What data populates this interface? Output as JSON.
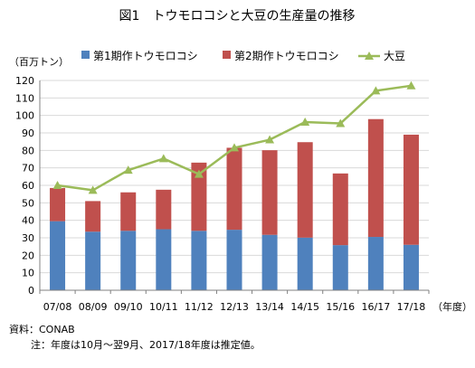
{
  "chart_data": {
    "type": "bar",
    "title": "図1　トウモロコシと大豆の生産量の推移",
    "ylabel": "（百万トン）",
    "xlabel": "（年度）",
    "ylim": [
      0,
      120
    ],
    "ytick_step": 10,
    "grid": true,
    "legend_position": "top",
    "categories": [
      "07/08",
      "08/09",
      "09/10",
      "10/11",
      "11/12",
      "12/13",
      "13/14",
      "14/15",
      "15/16",
      "16/17",
      "17/18"
    ],
    "series": [
      {
        "name": "第1期作トウモロコシ",
        "kind": "bar-stacked",
        "color": "#4f81bd",
        "values": [
          39.5,
          33.5,
          34,
          34.9,
          34,
          34.6,
          31.7,
          30.1,
          25.8,
          30.5,
          26
        ]
      },
      {
        "name": "第2期作トウモロコシ",
        "kind": "bar-stacked",
        "color": "#c0504d",
        "values": [
          19,
          17.5,
          22,
          22.6,
          39,
          46.9,
          48.4,
          54.6,
          41,
          67.4,
          63
        ]
      },
      {
        "name": "大豆",
        "kind": "line",
        "color": "#9bbb59",
        "values": [
          60,
          57.2,
          68.7,
          75.3,
          66.4,
          81.5,
          86.1,
          96.2,
          95.4,
          114.1,
          117
        ]
      }
    ]
  },
  "notes": {
    "source": "資料：CONAB",
    "footnote": "注：年度は10月～翌9月、2017/18年度は推定値。"
  }
}
